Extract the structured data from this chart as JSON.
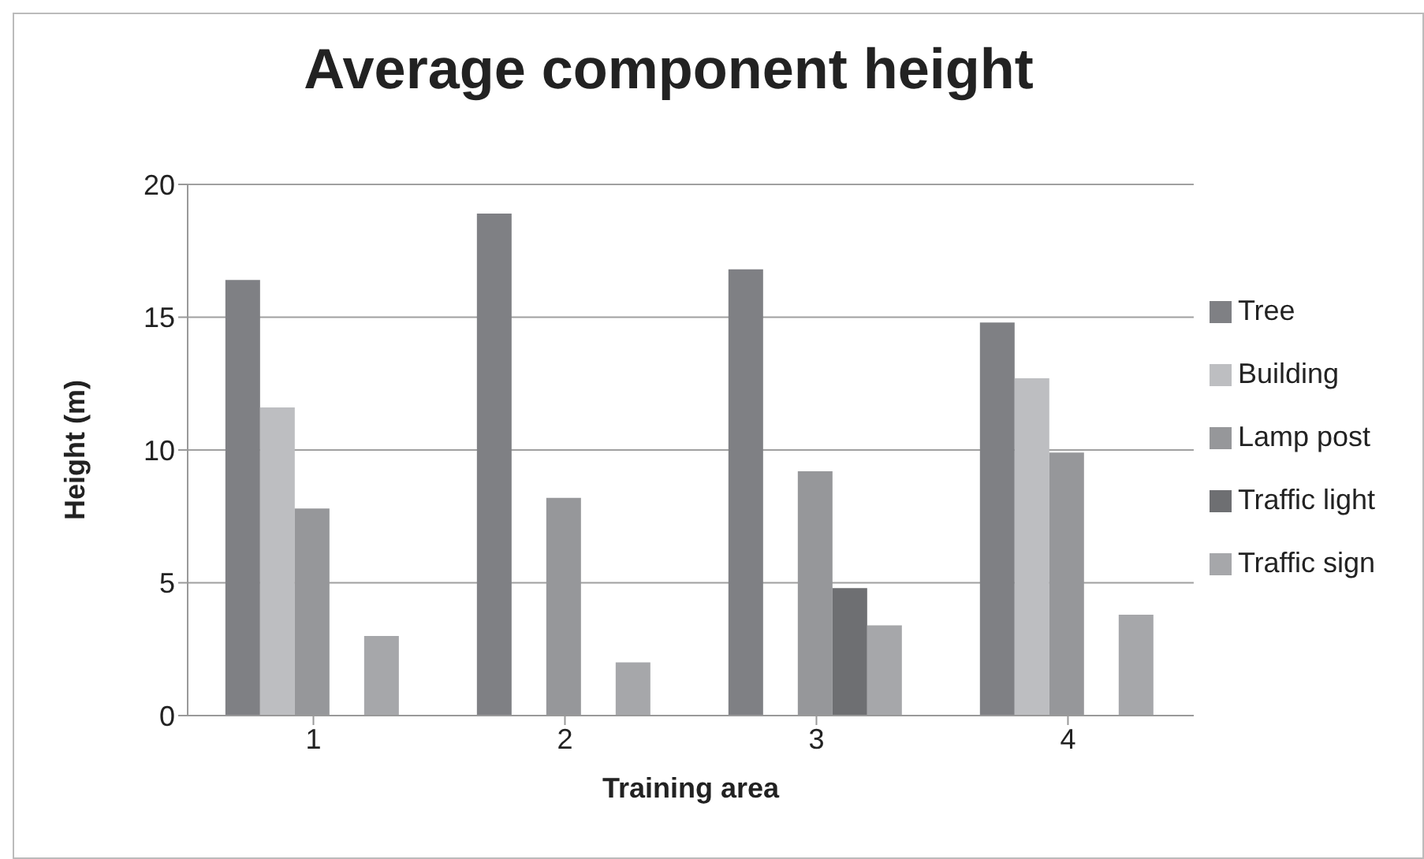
{
  "chart_data": {
    "type": "bar",
    "title": "Average component height",
    "xlabel": "Training area",
    "ylabel": "Height (m)",
    "categories": [
      "1",
      "2",
      "3",
      "4"
    ],
    "series": [
      {
        "name": "Tree",
        "color": "#7f8084",
        "values": [
          16.4,
          18.9,
          16.8,
          14.8
        ]
      },
      {
        "name": "Building",
        "color": "#bdbec1",
        "values": [
          11.6,
          null,
          null,
          12.7
        ]
      },
      {
        "name": "Lamp post",
        "color": "#96979a",
        "values": [
          7.8,
          8.2,
          9.2,
          9.9
        ]
      },
      {
        "name": "Traffic light",
        "color": "#6e6f72",
        "values": [
          null,
          null,
          4.8,
          null
        ]
      },
      {
        "name": "Traffic sign",
        "color": "#a6a7aa",
        "values": [
          3.0,
          2.0,
          3.4,
          3.8
        ]
      }
    ],
    "ylim": [
      0,
      20
    ],
    "yticks": [
      0,
      5,
      10,
      15,
      20
    ],
    "grid": "y",
    "legend": "right"
  }
}
